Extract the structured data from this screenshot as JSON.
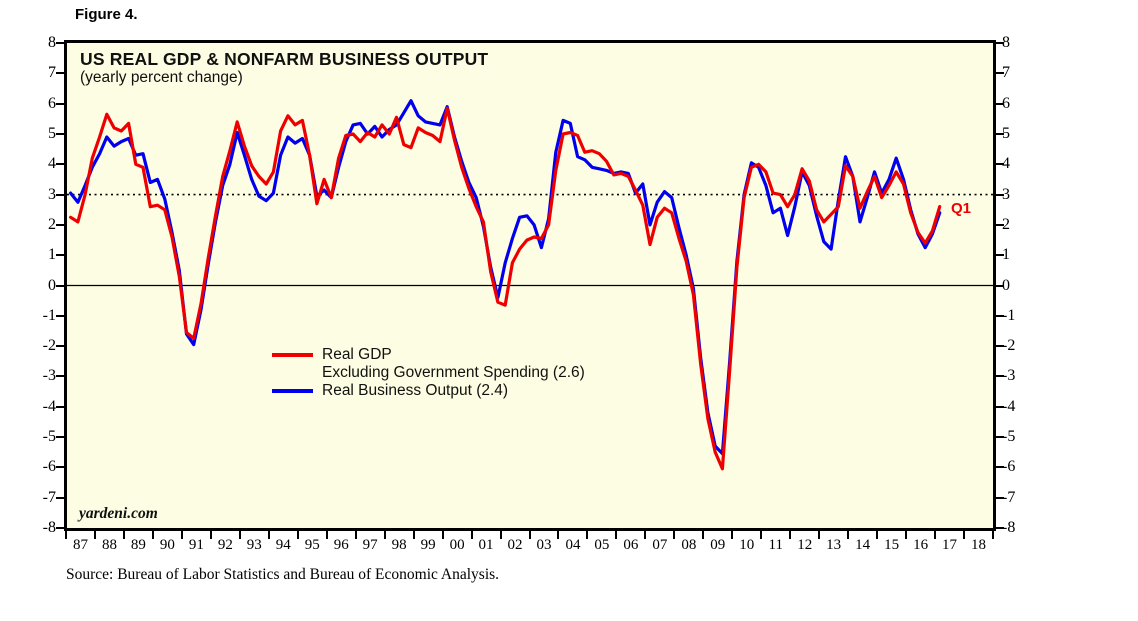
{
  "figure_label": "Figure 4.",
  "chart": {
    "title": "US REAL GDP & NONFARM BUSINESS OUTPUT",
    "subtitle": "(yearly percent change)",
    "watermark": "yardeni.com",
    "latest_label": "Q1",
    "source": "Source: Bureau of Labor Statistics and Bureau of Economic Analysis."
  },
  "legend": {
    "rows": [
      {
        "swatch_color": "#ee0000",
        "lines": [
          "Real GDP",
          "Excluding Government Spending (2.6)"
        ]
      },
      {
        "swatch_color": "#0000ee",
        "lines": [
          "Real Business Output (2.4)"
        ]
      }
    ]
  },
  "colors": {
    "red_line": "#ee0000",
    "blue_line": "#0000ee",
    "plot_background": "#fdfde3",
    "frame": "#000000"
  },
  "chart_data": {
    "type": "line",
    "frequency": "quarterly",
    "x_start": "1987-Q1",
    "x_end": "2017-Q1",
    "x_axis_years_shown": 32,
    "x_tick_labels": [
      "87",
      "88",
      "89",
      "90",
      "91",
      "92",
      "93",
      "94",
      "95",
      "96",
      "97",
      "98",
      "99",
      "00",
      "01",
      "02",
      "03",
      "04",
      "05",
      "06",
      "07",
      "08",
      "09",
      "10",
      "11",
      "12",
      "13",
      "14",
      "15",
      "16",
      "17",
      "18"
    ],
    "y_tick_labels": [
      "8",
      "7",
      "6",
      "5",
      "4",
      "3",
      "2",
      "1",
      "0",
      "-1",
      "-2",
      "-3",
      "-4",
      "-5",
      "-6",
      "-7",
      "-8"
    ],
    "ylim": [
      -8,
      8
    ],
    "reference_dotted_line": 3.0,
    "zero_line": true,
    "grid": false,
    "legend_position": "center-left inside plot",
    "series": [
      {
        "name": "Real GDP Excluding Government Spending",
        "latest_value": 2.6,
        "color": "#ee0000",
        "values": [
          2.25,
          2.1,
          3.0,
          4.2,
          4.9,
          5.65,
          5.2,
          5.1,
          5.35,
          4.0,
          3.9,
          2.6,
          2.65,
          2.5,
          1.6,
          0.3,
          -1.55,
          -1.75,
          -0.6,
          0.9,
          2.3,
          3.6,
          4.45,
          5.4,
          4.6,
          3.95,
          3.6,
          3.35,
          3.75,
          5.1,
          5.6,
          5.3,
          5.45,
          4.3,
          2.7,
          3.5,
          2.9,
          4.2,
          4.95,
          5.0,
          4.75,
          5.05,
          4.9,
          5.3,
          5.0,
          5.55,
          4.65,
          4.55,
          5.2,
          5.05,
          4.95,
          4.75,
          5.85,
          4.8,
          3.9,
          3.2,
          2.6,
          2.1,
          0.45,
          -0.55,
          -0.65,
          0.75,
          1.2,
          1.5,
          1.6,
          1.55,
          2.0,
          3.8,
          5.0,
          5.05,
          4.95,
          4.4,
          4.45,
          4.35,
          4.1,
          3.65,
          3.7,
          3.6,
          3.15,
          2.65,
          1.35,
          2.25,
          2.55,
          2.4,
          1.55,
          0.8,
          -0.3,
          -2.6,
          -4.4,
          -5.5,
          -6.05,
          -2.8,
          0.6,
          2.9,
          3.9,
          4.0,
          3.75,
          3.05,
          3.0,
          2.6,
          3.0,
          3.85,
          3.45,
          2.5,
          2.1,
          2.35,
          2.6,
          3.95,
          3.6,
          2.55,
          3.1,
          3.6,
          2.9,
          3.3,
          3.75,
          3.35,
          2.4,
          1.75,
          1.4,
          1.8,
          2.6
        ]
      },
      {
        "name": "Real Business Output",
        "latest_value": 2.4,
        "color": "#0000ee",
        "values": [
          3.05,
          2.75,
          3.3,
          3.9,
          4.35,
          4.9,
          4.6,
          4.75,
          4.85,
          4.3,
          4.35,
          3.4,
          3.5,
          2.85,
          1.75,
          0.5,
          -1.6,
          -1.95,
          -0.8,
          0.7,
          2.1,
          3.3,
          4.0,
          5.05,
          4.3,
          3.5,
          2.95,
          2.8,
          3.05,
          4.3,
          4.9,
          4.7,
          4.85,
          4.3,
          2.95,
          3.15,
          2.9,
          3.9,
          4.75,
          5.3,
          5.35,
          5.0,
          5.25,
          4.9,
          5.15,
          5.3,
          5.7,
          6.1,
          5.6,
          5.4,
          5.35,
          5.3,
          5.9,
          4.9,
          4.1,
          3.4,
          2.9,
          1.95,
          0.6,
          -0.4,
          0.75,
          1.55,
          2.25,
          2.3,
          2.0,
          1.25,
          2.2,
          4.4,
          5.45,
          5.35,
          4.25,
          4.15,
          3.9,
          3.85,
          3.8,
          3.7,
          3.75,
          3.7,
          3.05,
          3.35,
          2.0,
          2.75,
          3.1,
          2.9,
          1.9,
          1.0,
          -0.1,
          -2.4,
          -4.2,
          -5.3,
          -5.55,
          -2.5,
          0.8,
          3.0,
          4.05,
          3.9,
          3.3,
          2.4,
          2.55,
          1.65,
          2.6,
          3.75,
          3.3,
          2.3,
          1.45,
          1.2,
          2.8,
          4.25,
          3.6,
          2.1,
          2.9,
          3.75,
          3.05,
          3.5,
          4.2,
          3.5,
          2.5,
          1.7,
          1.25,
          1.7,
          2.4
        ]
      }
    ]
  }
}
